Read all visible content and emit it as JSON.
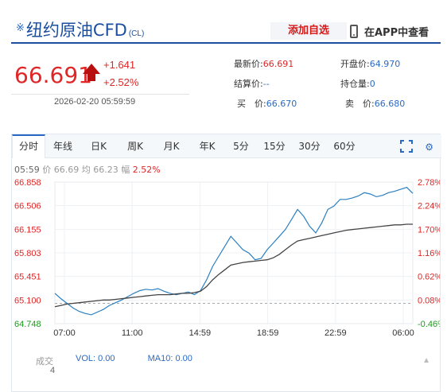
{
  "header": {
    "title_prefix": "※",
    "title": "纽约原油CFD",
    "code": "(CL)",
    "add_watch": "添加自选",
    "app_link": "在APP中查看"
  },
  "quote": {
    "price": "66.691",
    "change": "+1.641",
    "change_pct": "+2.52%",
    "time": "2026-02-20 05:59:59",
    "fields": [
      {
        "label": "最新价:",
        "value": "66.691",
        "color": "#e02626"
      },
      {
        "label": "开盘价:",
        "value": "64.970",
        "color": "#2a6ac7"
      },
      {
        "label": "结算价:",
        "value": "--",
        "color": "#2a6ac7"
      },
      {
        "label": "持仓量:",
        "value": "0",
        "color": "#2a6ac7"
      },
      {
        "label": "买　价:",
        "value": "66.670",
        "color": "#2a6ac7"
      },
      {
        "label": "卖　价:",
        "value": "66.680",
        "color": "#2a6ac7"
      }
    ]
  },
  "tabs": [
    "分时",
    "年线",
    "日K",
    "周K",
    "月K",
    "年K",
    "5分",
    "15分",
    "30分",
    "60分"
  ],
  "active_tab": "分时",
  "status": {
    "time": "05:59",
    "price_label": "价",
    "price": "66.69",
    "avg_label": "均",
    "avg": "66.23",
    "amp_label": "幅",
    "amp": "2.52%"
  },
  "chart_data": {
    "type": "line",
    "y_ticks": [
      "66.858",
      "66.506",
      "66.155",
      "65.803",
      "65.451",
      "65.100",
      "64.748"
    ],
    "pct_ticks": [
      "2.78%",
      "2.24%",
      "1.70%",
      "1.16%",
      "0.62%",
      "0.08%",
      "-0.46%"
    ],
    "ylim": [
      64.748,
      66.858
    ],
    "prev_close": 65.05,
    "x_ticks": [
      "07:00",
      "11:00",
      "14:59",
      "18:59",
      "22:59",
      "06:00"
    ],
    "series": [
      {
        "values": [
          65.2,
          65.12,
          65.05,
          64.98,
          64.93,
          64.9,
          64.88,
          64.92,
          64.96,
          65.02,
          65.06,
          65.1,
          65.15,
          65.2,
          65.24,
          65.26,
          65.25,
          65.27,
          65.23,
          65.2,
          65.18,
          65.2,
          65.22,
          65.18,
          65.24,
          65.4,
          65.6,
          65.75,
          65.9,
          66.05,
          65.95,
          65.85,
          65.8,
          65.7,
          65.72,
          65.85,
          65.95,
          66.05,
          66.15,
          66.3,
          66.45,
          66.35,
          66.2,
          66.1,
          66.25,
          66.45,
          66.5,
          66.6,
          66.6,
          66.62,
          66.65,
          66.7,
          66.68,
          66.64,
          66.66,
          66.7,
          66.72,
          66.75,
          66.78,
          66.69
        ],
        "color": "#2a7fc0"
      },
      {
        "values": [
          65.0,
          65.02,
          65.04,
          65.05,
          65.06,
          65.07,
          65.08,
          65.09,
          65.1,
          65.1,
          65.11,
          65.12,
          65.13,
          65.14,
          65.15,
          65.16,
          65.17,
          65.18,
          65.18,
          65.18,
          65.19,
          65.2,
          65.2,
          65.21,
          65.23,
          65.3,
          65.4,
          65.48,
          65.55,
          65.62,
          65.64,
          65.66,
          65.67,
          65.68,
          65.69,
          65.7,
          65.73,
          65.78,
          65.85,
          65.92,
          65.98,
          66.0,
          66.02,
          66.04,
          66.06,
          66.08,
          66.1,
          66.12,
          66.14,
          66.15,
          66.16,
          66.17,
          66.18,
          66.19,
          66.2,
          66.21,
          66.22,
          66.22,
          66.23,
          66.23
        ],
        "color": "#444444"
      }
    ],
    "grid": true
  },
  "volume": {
    "label": "成交",
    "vol": "VOL: 0.00",
    "ma": "MA10: 0.00",
    "sub": "4"
  }
}
